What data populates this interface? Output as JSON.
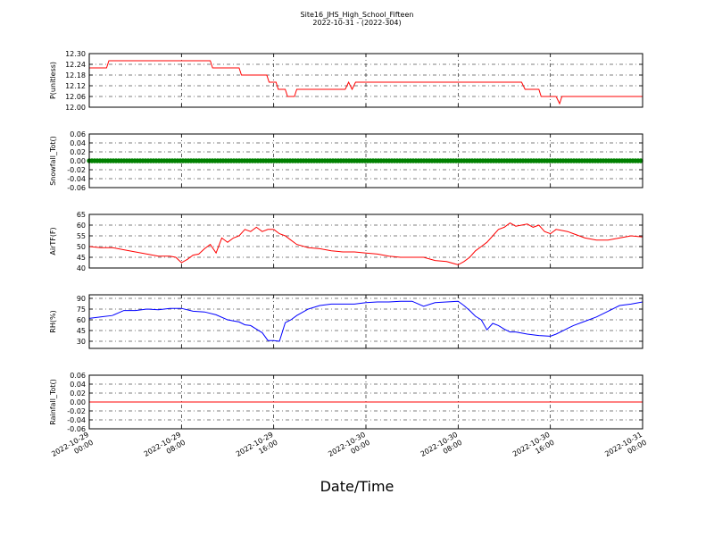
{
  "chart_data": {
    "type": "line",
    "title": "Site16_JHS_High_School_Fifteen",
    "subtitle": "2022-10-31 - (2022-304)",
    "xlabel": "Date/Time",
    "x_ticks": [
      "2022-10-29\n00:00",
      "2022-10-29\n08:00",
      "2022-10-29\n16:00",
      "2022-10-30\n00:00",
      "2022-10-30\n08:00",
      "2022-10-30\n16:00",
      "2022-10-31\n00:00"
    ],
    "x_range_hours": [
      0,
      48
    ],
    "grid": true,
    "panels": [
      {
        "ylabel": "P(unitless)",
        "ylim": [
          12.0,
          12.3
        ],
        "yticks": [
          "12.00",
          "12.06",
          "12.12",
          "12.18",
          "12.24",
          "12.30"
        ],
        "series": [
          {
            "color": "#ff0000",
            "style": "line",
            "x": [
              0,
              1.5,
              1.7,
              10.5,
              10.7,
              13.0,
              13.2,
              15.4,
              15.6,
              16.2,
              16.4,
              17.0,
              17.2,
              17.8,
              18.0,
              22.2,
              22.5,
              22.8,
              23.1,
              23.5,
              37.5,
              37.8,
              39.0,
              39.2,
              40.5,
              40.8,
              41.0,
              41.4,
              48
            ],
            "values": [
              12.22,
              12.22,
              12.26,
              12.26,
              12.22,
              12.22,
              12.18,
              12.18,
              12.14,
              12.14,
              12.1,
              12.1,
              12.06,
              12.06,
              12.1,
              12.1,
              12.14,
              12.1,
              12.14,
              12.14,
              12.14,
              12.1,
              12.1,
              12.06,
              12.06,
              12.02,
              12.06,
              12.06,
              12.06
            ]
          }
        ]
      },
      {
        "ylabel": "Snowfall_Tot()",
        "ylim": [
          -0.06,
          0.06
        ],
        "yticks": [
          "-0.06",
          "-0.04",
          "-0.02",
          "0.00",
          "0.02",
          "0.04",
          "0.06"
        ],
        "series": [
          {
            "color": "#008000",
            "style": "markers",
            "x": [
              0,
              48
            ],
            "values": [
              0.0,
              0.0
            ],
            "note_every_minutes": 0
          }
        ]
      },
      {
        "ylabel": "AirTF(F)",
        "ylim": [
          40,
          65
        ],
        "yticks": [
          "40",
          "45",
          "50",
          "55",
          "60",
          "65"
        ],
        "series": [
          {
            "color": "#ff0000",
            "style": "line",
            "x": [
              0,
              1,
              2,
              3,
              4,
              5,
              6,
              7,
              7.5,
              8,
              8.5,
              9,
              9.5,
              10,
              10.5,
              11,
              11.5,
              12,
              12.5,
              13,
              13.5,
              14,
              14.5,
              15,
              15.5,
              16,
              16.5,
              17,
              17.5,
              18,
              19,
              20,
              21,
              22,
              23,
              24,
              25,
              26,
              27,
              28,
              29,
              30,
              31,
              32,
              32.5,
              33,
              33.5,
              34,
              34.5,
              35,
              35.5,
              36,
              36.5,
              37,
              37.5,
              38,
              38.5,
              39,
              39.5,
              40,
              40.5,
              41,
              41.5,
              42,
              42.5,
              43,
              44,
              45,
              46,
              47,
              48
            ],
            "values": [
              50,
              49.5,
              49.5,
              48.5,
              47.5,
              46.5,
              45.5,
              45.5,
              45,
              42.5,
              44,
              46,
              46.5,
              49,
              51,
              47,
              54,
              52,
              54,
              55,
              58,
              57,
              59,
              57,
              58,
              58,
              56,
              55,
              53,
              51,
              49.5,
              49,
              48,
              47.5,
              47.5,
              47,
              46.5,
              45.5,
              45,
              45,
              45,
              43.5,
              43,
              41.5,
              43,
              45,
              48,
              50,
              52,
              55,
              58,
              59,
              61,
              59.5,
              60,
              60.5,
              59,
              60,
              57,
              56,
              58,
              57.5,
              57,
              56,
              55,
              54,
              53,
              53,
              54,
              55,
              54.5
            ]
          }
        ]
      },
      {
        "ylabel": "RH(%)",
        "ylim": [
          20,
          95
        ],
        "yticks": [
          "30",
          "45",
          "60",
          "75",
          "90"
        ],
        "series": [
          {
            "color": "#0000ff",
            "style": "line",
            "x": [
              0,
              1,
              2,
              3,
              4,
              5,
              6,
              7,
              8,
              9,
              10,
              11,
              12,
              13,
              13.5,
              14,
              14.5,
              15,
              15.5,
              16,
              16.5,
              17,
              17.5,
              18,
              19,
              20,
              21,
              22,
              23,
              24,
              25,
              26,
              27,
              28,
              29,
              30,
              31,
              32,
              32.5,
              33,
              33.5,
              34,
              34.5,
              35,
              35.5,
              36,
              36.5,
              37,
              38,
              39,
              40,
              40.5,
              41,
              41.5,
              42,
              43,
              44,
              45,
              46,
              47,
              48
            ],
            "values": [
              62,
              64,
              66,
              73,
              73,
              75,
              74,
              76,
              76,
              72,
              71,
              67,
              60,
              57,
              53,
              52,
              47,
              42,
              31,
              31,
              30,
              56,
              60,
              66,
              75,
              80,
              82,
              82,
              82,
              84,
              85,
              85,
              86,
              86,
              79,
              84,
              85,
              86,
              80,
              73,
              65,
              60,
              46,
              55,
              52,
              47,
              43,
              43,
              40,
              38,
              37,
              40,
              44,
              48,
              52,
              58,
              64,
              72,
              80,
              82,
              85
            ]
          }
        ]
      },
      {
        "ylabel": "Rainfall_Tot()",
        "ylim": [
          -0.06,
          0.06
        ],
        "yticks": [
          "-0.06",
          "-0.04",
          "-0.02",
          "0.00",
          "0.02",
          "0.04",
          "0.06"
        ],
        "series": [
          {
            "color": "#ff0000",
            "style": "line",
            "x": [
              0,
              48
            ],
            "values": [
              0.0,
              0.0
            ]
          }
        ]
      }
    ]
  }
}
